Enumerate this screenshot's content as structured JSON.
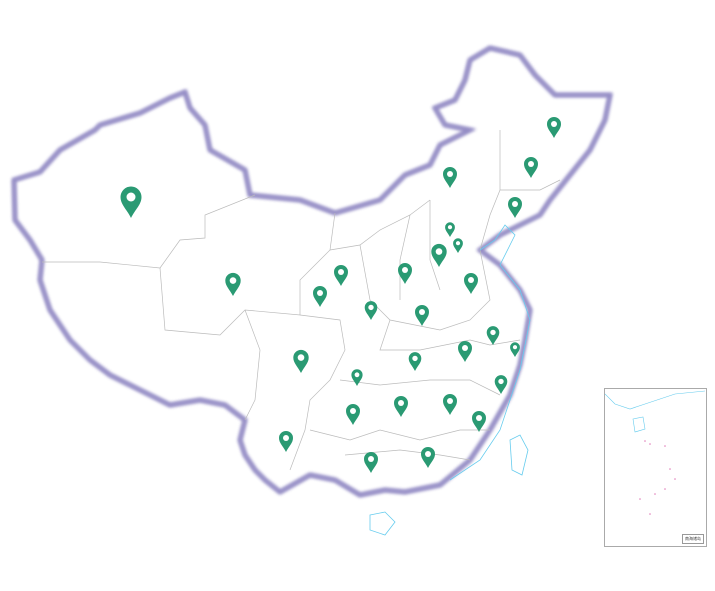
{
  "map": {
    "region": "China",
    "marker_color": "#2a9a73",
    "border_color": "#b9b4d6",
    "province_line_color": "#bbbbbb",
    "water_color": "#66ccee",
    "marker_icon": "map-pin-icon"
  },
  "inset": {
    "title": "南海诸岛"
  }
}
